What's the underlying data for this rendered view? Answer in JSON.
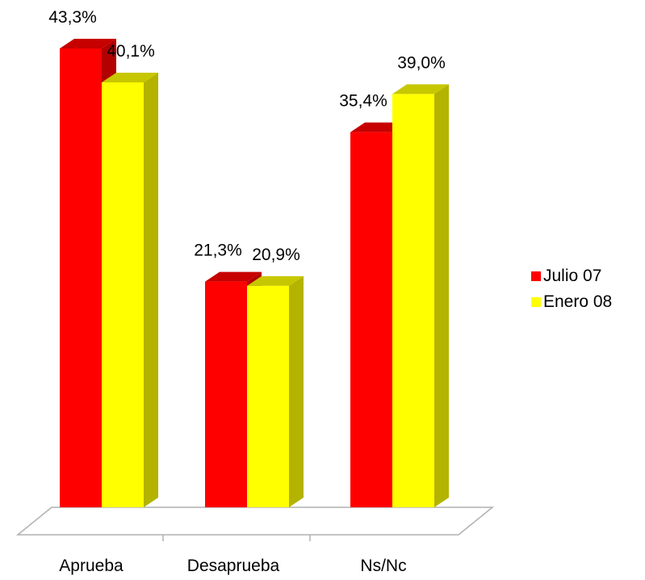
{
  "chart_data": {
    "type": "bar",
    "categories": [
      "Aprueba",
      "Desaprueba",
      "Ns/Nc"
    ],
    "series": [
      {
        "name": "Julio 07",
        "values": [
          43.3,
          21.3,
          35.4
        ],
        "labels": [
          "43,3%",
          "21,3%",
          "35,4%"
        ],
        "color": "#ff0000"
      },
      {
        "name": "Enero 08",
        "values": [
          40.1,
          20.9,
          39.0
        ],
        "labels": [
          "40,1%",
          "20,9%",
          "39,0%"
        ],
        "color": "#ffff00"
      }
    ],
    "ylim": [
      0,
      45
    ],
    "three_d": true,
    "grid": false,
    "legend_position": "right"
  }
}
